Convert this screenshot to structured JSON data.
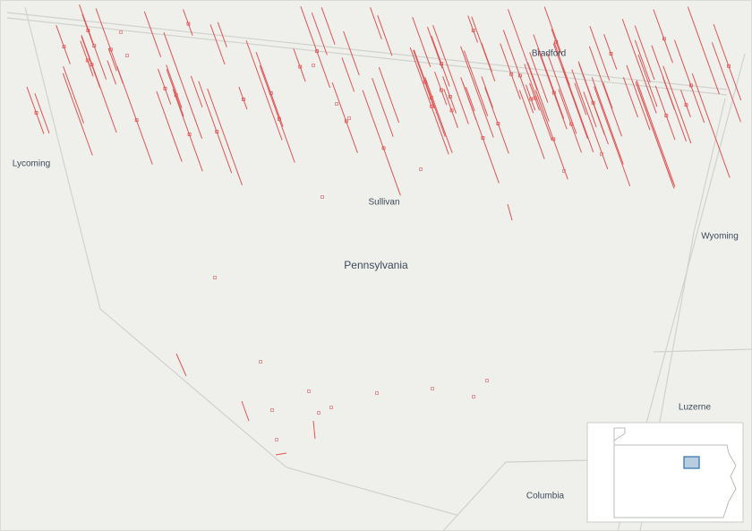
{
  "map": {
    "labels": {
      "bradford": "Bradford",
      "lycoming": "Lycoming",
      "sullivan": "Sullivan",
      "wyoming": "Wyoming",
      "state": "Pennsylvania",
      "luzerne": "Luzerne",
      "columbia": "Columbia"
    }
  }
}
